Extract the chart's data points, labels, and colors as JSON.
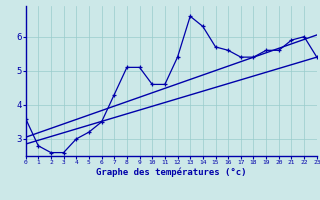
{
  "xlabel": "Graphe des températures (°c)",
  "x_ticks": [
    0,
    1,
    2,
    3,
    4,
    5,
    6,
    7,
    8,
    9,
    10,
    11,
    12,
    13,
    14,
    15,
    16,
    17,
    18,
    19,
    20,
    21,
    22,
    23
  ],
  "x_tick_labels": [
    "0",
    "1",
    "2",
    "3",
    "4",
    "5",
    "6",
    "7",
    "8",
    "9",
    "10",
    "11",
    "12",
    "13",
    "14",
    "15",
    "16",
    "17",
    "18",
    "19",
    "20",
    "21",
    "22",
    "23"
  ],
  "y_ticks": [
    3,
    4,
    5,
    6
  ],
  "xlim": [
    0,
    23
  ],
  "ylim": [
    2.5,
    6.9
  ],
  "bg_color": "#cce8e8",
  "line_color": "#0000aa",
  "grid_color": "#99cccc",
  "temp_x": [
    0,
    1,
    2,
    3,
    4,
    5,
    6,
    7,
    8,
    9,
    10,
    11,
    12,
    13,
    14,
    15,
    16,
    17,
    18,
    19,
    20,
    21,
    22,
    23
  ],
  "temp_y": [
    3.6,
    2.8,
    2.6,
    2.6,
    3.0,
    3.2,
    3.5,
    4.3,
    5.1,
    5.1,
    4.6,
    4.6,
    5.4,
    6.6,
    6.3,
    5.7,
    5.6,
    5.4,
    5.4,
    5.6,
    5.6,
    5.9,
    6.0,
    5.4
  ],
  "trend1_x": [
    0,
    23
  ],
  "trend1_y": [
    2.85,
    5.4
  ],
  "trend2_x": [
    0,
    23
  ],
  "trend2_y": [
    3.05,
    6.05
  ]
}
